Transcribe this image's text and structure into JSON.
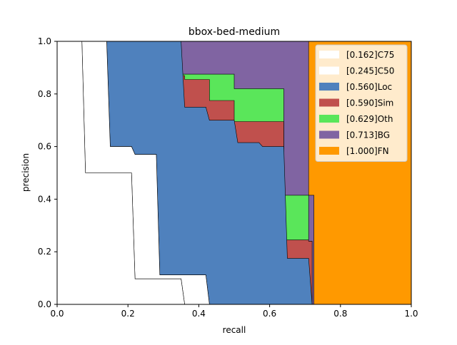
{
  "chart_data": {
    "type": "area",
    "title": "bbox-bed-medium",
    "xlabel": "recall",
    "ylabel": "precision",
    "xlim": [
      0,
      1
    ],
    "ylim": [
      0,
      1
    ],
    "x_ticks": [
      "0.0",
      "0.2",
      "0.4",
      "0.6",
      "0.8",
      "1.0"
    ],
    "y_ticks": [
      "0.0",
      "0.2",
      "0.4",
      "0.6",
      "0.8",
      "1.0"
    ],
    "legend_position": "top-right",
    "grid": false,
    "series": [
      {
        "name": "[1.000]FN",
        "color": "#ff9900",
        "points": [
          [
            0,
            1
          ],
          [
            1,
            1
          ],
          [
            1,
            0
          ],
          [
            0,
            0
          ]
        ]
      },
      {
        "name": "[0.713]BG",
        "color": "#8064a2",
        "points": [
          [
            0,
            1
          ],
          [
            0.71,
            1
          ],
          [
            0.71,
            0.415
          ],
          [
            0.725,
            0.415
          ],
          [
            0.725,
            0
          ],
          [
            0,
            0
          ]
        ]
      },
      {
        "name": "[0.629]Oth",
        "color": "#5ae65a",
        "points": [
          [
            0,
            1
          ],
          [
            0.35,
            1
          ],
          [
            0.35,
            0.875
          ],
          [
            0.5,
            0.875
          ],
          [
            0.5,
            0.82
          ],
          [
            0.64,
            0.82
          ],
          [
            0.64,
            0.415
          ],
          [
            0.71,
            0.415
          ],
          [
            0.71,
            0.24
          ],
          [
            0.72,
            0.24
          ],
          [
            0.72,
            0
          ],
          [
            0,
            0
          ]
        ]
      },
      {
        "name": "[0.590]Sim",
        "color": "#c0504d",
        "points": [
          [
            0,
            1
          ],
          [
            0.35,
            1
          ],
          [
            0.35,
            0.87
          ],
          [
            0.36,
            0.87
          ],
          [
            0.36,
            0.855
          ],
          [
            0.43,
            0.855
          ],
          [
            0.43,
            0.775
          ],
          [
            0.5,
            0.775
          ],
          [
            0.5,
            0.695
          ],
          [
            0.64,
            0.695
          ],
          [
            0.64,
            0.245
          ],
          [
            0.71,
            0.245
          ],
          [
            0.71,
            0.24
          ],
          [
            0.72,
            0.24
          ],
          [
            0.72,
            0
          ],
          [
            0,
            0
          ]
        ]
      },
      {
        "name": "[0.560]Loc",
        "color": "#4f81bd",
        "points": [
          [
            0.14,
            1
          ],
          [
            0.35,
            1
          ],
          [
            0.36,
            0.75
          ],
          [
            0.42,
            0.75
          ],
          [
            0.43,
            0.7
          ],
          [
            0.5,
            0.7
          ],
          [
            0.51,
            0.615
          ],
          [
            0.57,
            0.615
          ],
          [
            0.58,
            0.6
          ],
          [
            0.64,
            0.6
          ],
          [
            0.65,
            0.175
          ],
          [
            0.71,
            0.175
          ],
          [
            0.72,
            0
          ],
          [
            0.43,
            0
          ],
          [
            0.42,
            0.112
          ],
          [
            0.29,
            0.112
          ],
          [
            0.28,
            0.57
          ],
          [
            0.22,
            0.57
          ],
          [
            0.21,
            0.6
          ],
          [
            0.15,
            0.6
          ]
        ]
      },
      {
        "name": "[0.245]C50",
        "color": "#ffffff",
        "points": [
          [
            0.07,
            1
          ],
          [
            0.14,
            1
          ],
          [
            0.15,
            0.6
          ],
          [
            0.21,
            0.6
          ],
          [
            0.22,
            0.57
          ],
          [
            0.28,
            0.57
          ],
          [
            0.29,
            0.112
          ],
          [
            0.42,
            0.112
          ],
          [
            0.43,
            0
          ],
          [
            0.36,
            0
          ],
          [
            0.35,
            0.097
          ],
          [
            0.22,
            0.097
          ],
          [
            0.21,
            0.5
          ],
          [
            0.08,
            0.5
          ]
        ]
      },
      {
        "name": "[0.162]C75",
        "color": "#ffffff",
        "points": [
          [
            0,
            1
          ],
          [
            0.07,
            1
          ],
          [
            0.08,
            0.5
          ],
          [
            0.21,
            0.5
          ],
          [
            0.22,
            0.097
          ],
          [
            0.35,
            0.097
          ],
          [
            0.36,
            0
          ],
          [
            0,
            0
          ]
        ]
      }
    ],
    "legend_order": [
      "[0.162]C75",
      "[0.245]C50",
      "[0.560]Loc",
      "[0.590]Sim",
      "[0.629]Oth",
      "[0.713]BG",
      "[1.000]FN"
    ]
  }
}
